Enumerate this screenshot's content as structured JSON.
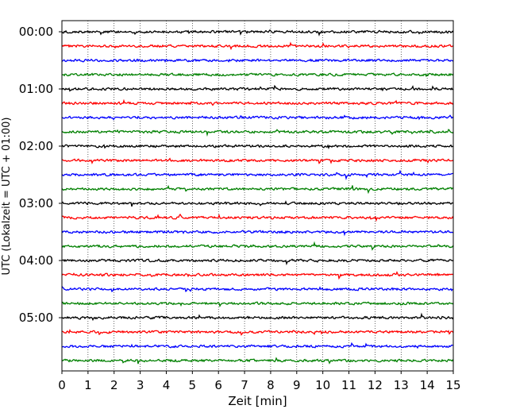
{
  "chart_data": {
    "type": "line",
    "title": "",
    "xlabel": "Zeit  [min]",
    "ylabel": "UTC (Lokalzeit = UTC + 01:00)",
    "xlim": [
      0,
      15
    ],
    "x_ticks": [
      "0",
      "1",
      "2",
      "3",
      "4",
      "5",
      "6",
      "7",
      "8",
      "9",
      "10",
      "11",
      "12",
      "13",
      "14",
      "15"
    ],
    "grid": "vertical dotted",
    "y_ticks": [
      "00:00",
      "01:00",
      "02:00",
      "03:00",
      "04:00",
      "05:00"
    ],
    "trace_interval_min": 15,
    "trace_start_utc": "00:00",
    "trace_count": 24,
    "trace_colors": [
      "#000000",
      "#ff0000",
      "#0000ff",
      "#008000"
    ]
  }
}
